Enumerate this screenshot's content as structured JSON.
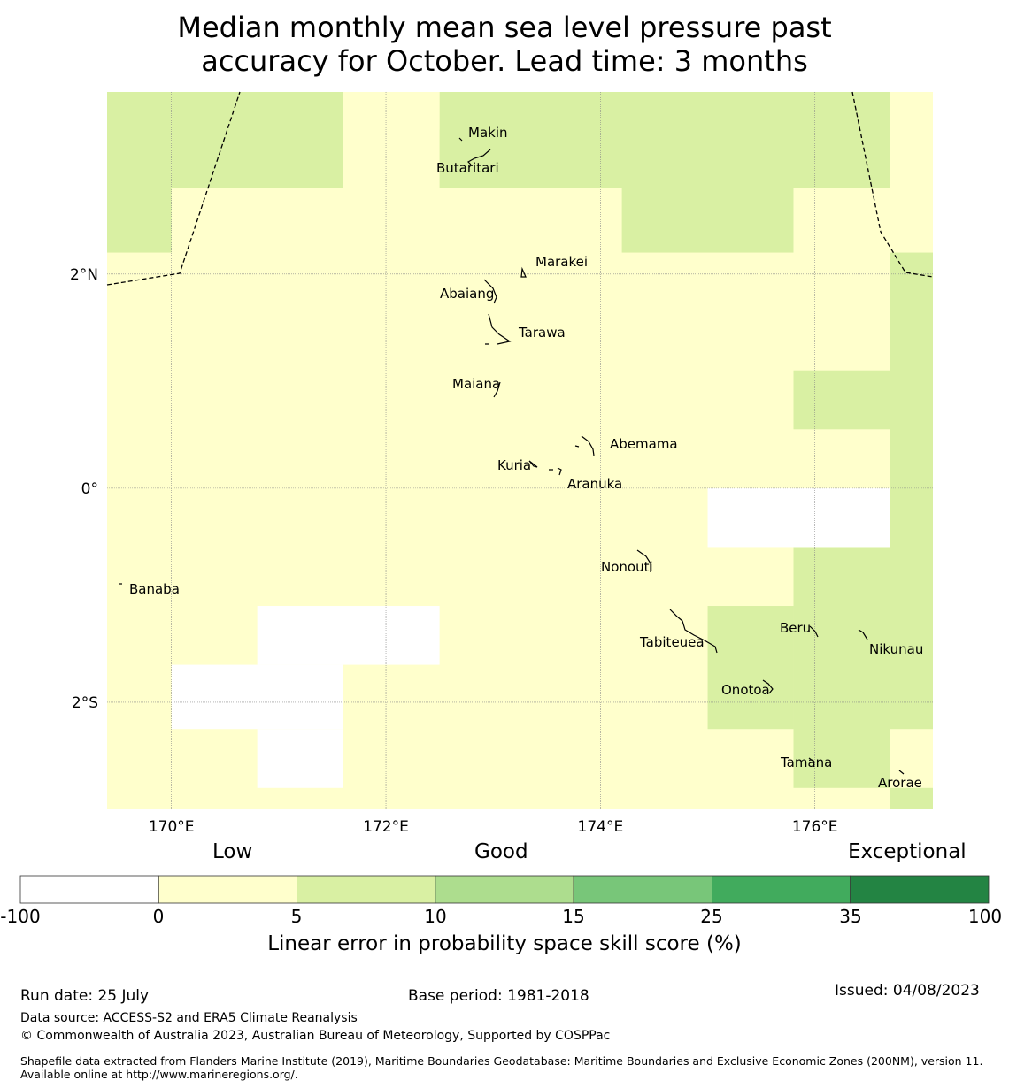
{
  "title_line1": "Median monthly mean sea level pressure past",
  "title_line2": "accuracy for October. Lead time: 3 months",
  "map": {
    "lon_range": [
      169.4,
      177.1
    ],
    "lat_range": [
      -3.0,
      3.7
    ],
    "lon_ticks": [
      {
        "value": 170,
        "label": "170°E"
      },
      {
        "value": 172,
        "label": "172°E"
      },
      {
        "value": 174,
        "label": "174°E"
      },
      {
        "value": 176,
        "label": "176°E"
      }
    ],
    "lat_ticks": [
      {
        "value": 2,
        "label": "2°N"
      },
      {
        "value": 0,
        "label": "0°"
      },
      {
        "value": -2,
        "label": "2°S"
      }
    ],
    "category_colors": {
      "white": "#ffffff",
      "low": "#ffffcc",
      "light_green": "#d9f0a3"
    },
    "grid_cells": [
      {
        "lon": [
          169.4,
          170.0
        ],
        "lat": [
          2.2,
          3.7
        ],
        "cat": "light_green"
      },
      {
        "lon": [
          170.0,
          171.6
        ],
        "lat": [
          2.8,
          3.7
        ],
        "cat": "light_green"
      },
      {
        "lon": [
          172.5,
          177.1
        ],
        "lat": [
          2.8,
          3.7
        ],
        "cat": "light_green"
      },
      {
        "lon": [
          174.2,
          175.8
        ],
        "lat": [
          2.2,
          2.8
        ],
        "cat": "light_green"
      },
      {
        "lon": [
          171.6,
          172.5
        ],
        "lat": [
          3.35,
          3.7
        ],
        "cat": "low"
      },
      {
        "lon": [
          176.7,
          177.1
        ],
        "lat": [
          2.2,
          3.7
        ],
        "cat": "low"
      },
      {
        "lon": [
          176.7,
          177.1
        ],
        "lat": [
          -3.0,
          2.2
        ],
        "cat": "light_green"
      },
      {
        "lon": [
          175.8,
          176.7
        ],
        "lat": [
          0.55,
          1.1
        ],
        "cat": "light_green"
      },
      {
        "lon": [
          175.8,
          176.7
        ],
        "lat": [
          -2.8,
          -0.55
        ],
        "cat": "light_green"
      },
      {
        "lon": [
          175.0,
          175.8
        ],
        "lat": [
          -2.25,
          -1.1
        ],
        "cat": "light_green"
      },
      {
        "lon": [
          176.7,
          177.1
        ],
        "lat": [
          -2.8,
          -2.25
        ],
        "cat": "low"
      },
      {
        "lon": [
          175.0,
          176.7
        ],
        "lat": [
          -0.55,
          0.0
        ],
        "cat": "white"
      },
      {
        "lon": [
          170.8,
          172.5
        ],
        "lat": [
          -1.65,
          -1.1
        ],
        "cat": "white"
      },
      {
        "lon": [
          170.0,
          171.6
        ],
        "lat": [
          -2.25,
          -1.65
        ],
        "cat": "white"
      },
      {
        "lon": [
          170.8,
          171.6
        ],
        "lat": [
          -2.8,
          -2.25
        ],
        "cat": "white"
      }
    ],
    "islands": [
      {
        "name": "Makin",
        "lon": 173.0,
        "lat": 3.35
      },
      {
        "name": "Butaritari",
        "lon": 172.85,
        "lat": 3.02
      },
      {
        "name": "Marakei",
        "lon": 173.28,
        "lat": 2.02
      },
      {
        "name": "Abaiang",
        "lon": 172.95,
        "lat": 1.84
      },
      {
        "name": "Tarawa",
        "lon": 173.02,
        "lat": 1.45
      },
      {
        "name": "Maiana",
        "lon": 173.0,
        "lat": 0.93
      },
      {
        "name": "Abemama",
        "lon": 173.85,
        "lat": 0.41
      },
      {
        "name": "Kuria",
        "lon": 173.4,
        "lat": 0.23
      },
      {
        "name": "Aranuka",
        "lon": 173.6,
        "lat": 0.16
      },
      {
        "name": "Nonouti",
        "lon": 174.4,
        "lat": -0.66
      },
      {
        "name": "Banaba",
        "lon": 169.53,
        "lat": -0.88
      },
      {
        "name": "Tabiteuea",
        "lon": 174.88,
        "lat": -1.4
      },
      {
        "name": "Beru",
        "lon": 176.0,
        "lat": -1.33
      },
      {
        "name": "Nikunau",
        "lon": 176.45,
        "lat": -1.37
      },
      {
        "name": "Onotoa",
        "lon": 175.57,
        "lat": -1.85
      },
      {
        "name": "Tamana",
        "lon": 175.98,
        "lat": -2.5
      },
      {
        "name": "Arorae",
        "lon": 176.82,
        "lat": -2.65
      }
    ]
  },
  "colorbar": {
    "categories": [
      "Low",
      "Good",
      "Exceptional"
    ],
    "bins": [
      {
        "from": "-100",
        "to": "0",
        "color": "#ffffff"
      },
      {
        "from": "0",
        "to": "5",
        "color": "#ffffcc"
      },
      {
        "from": "5",
        "to": "10",
        "color": "#d9f0a3"
      },
      {
        "from": "10",
        "to": "15",
        "color": "#addd8e"
      },
      {
        "from": "15",
        "to": "25",
        "color": "#78c679"
      },
      {
        "from": "25",
        "to": "35",
        "color": "#41ab5d"
      },
      {
        "from": "35",
        "to": "100",
        "color": "#238443"
      }
    ],
    "tick_labels": [
      "-100",
      "0",
      "5",
      "10",
      "15",
      "25",
      "35",
      "100"
    ],
    "title": "Linear error in probability space skill score (%)"
  },
  "footer": {
    "run_date": "Run date: 25 July",
    "base_period": "Base period: 1981-2018",
    "issued": "Issued: 04/08/2023",
    "data_source": "Data source: ACCESS-S2 and ERA5 Climate Reanalysis",
    "copyright": "© Commonwealth of Australia 2023, Australian Bureau of Meteorology, Supported by COSPPac",
    "shapefile_note": "Shapefile data extracted from Flanders Marine Institute (2019), Maritime Boundaries Geodatabase: Maritime Boundaries and Exclusive Economic Zones (200NM), version 11. Available online at http://www.marineregions.org/."
  }
}
